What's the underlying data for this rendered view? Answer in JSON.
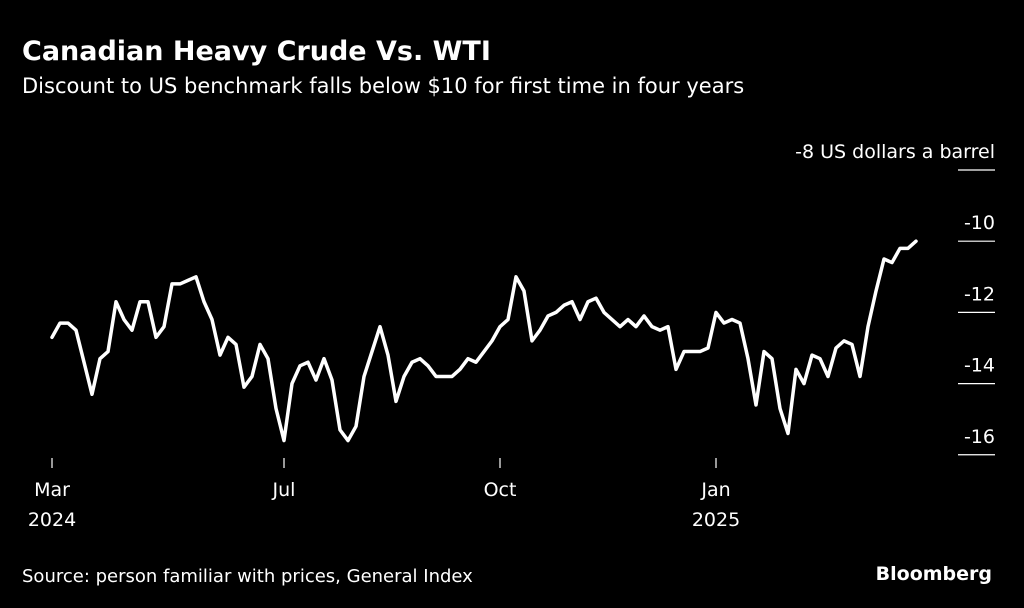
{
  "chart_data": {
    "type": "line",
    "title": "Canadian Heavy Crude Vs. WTI",
    "subtitle": "Discount to US benchmark falls below $10 for first time in four years",
    "categories": [
      "Mar 2024",
      null,
      null,
      null,
      null,
      null,
      null,
      null,
      null,
      null,
      null,
      null,
      null,
      null,
      null,
      null,
      null,
      null,
      null,
      null,
      null,
      null,
      null,
      null,
      null,
      null,
      null,
      null,
      null,
      "Jul",
      null,
      null,
      null,
      null,
      null,
      null,
      null,
      null,
      null,
      null,
      null,
      null,
      null,
      null,
      null,
      null,
      null,
      null,
      null,
      null,
      null,
      null,
      null,
      null,
      null,
      null,
      "Oct",
      null,
      null,
      null,
      null,
      null,
      null,
      null,
      null,
      null,
      null,
      null,
      null,
      null,
      null,
      null,
      null,
      null,
      null,
      null,
      null,
      null,
      null,
      null,
      null,
      null,
      null,
      "Jan 2025",
      null,
      null,
      null,
      null,
      null,
      null,
      null,
      null,
      null,
      null,
      null,
      null,
      null,
      null,
      null,
      null,
      null,
      null,
      null,
      null,
      null,
      null,
      null,
      null,
      null
    ],
    "values": [
      -12.7,
      -12.3,
      -12.3,
      -12.5,
      -13.4,
      -14.3,
      -13.3,
      -13.1,
      -11.7,
      -12.2,
      -12.5,
      -11.7,
      -11.7,
      -12.7,
      -12.4,
      -11.2,
      -11.2,
      -11.1,
      -11.0,
      -11.7,
      -12.2,
      -13.2,
      -12.7,
      -12.9,
      -14.1,
      -13.8,
      -12.9,
      -13.3,
      -14.7,
      -15.6,
      -14.0,
      -13.5,
      -13.4,
      -13.9,
      -13.3,
      -13.9,
      -15.3,
      -15.6,
      -15.2,
      -13.8,
      -13.1,
      -12.4,
      -13.2,
      -14.5,
      -13.8,
      -13.4,
      -13.3,
      -13.5,
      -13.8,
      -13.8,
      -13.8,
      -13.6,
      -13.3,
      -13.4,
      -13.1,
      -12.8,
      -12.4,
      -12.2,
      -11.0,
      -11.4,
      -12.8,
      -12.5,
      -12.1,
      -12.0,
      -11.8,
      -11.7,
      -12.2,
      -11.7,
      -11.6,
      -12.0,
      -12.2,
      -12.4,
      -12.2,
      -12.4,
      -12.1,
      -12.4,
      -12.5,
      -12.4,
      -13.6,
      -13.1,
      -13.1,
      -13.1,
      -13.0,
      -12.0,
      -12.3,
      -12.2,
      -12.3,
      -13.3,
      -14.6,
      -13.1,
      -13.3,
      -14.7,
      -15.4,
      -13.6,
      -14.0,
      -13.2,
      -13.3,
      -13.8,
      -13.0,
      -12.8,
      -12.9,
      -13.8,
      -12.4,
      -11.4,
      -10.5,
      -10.6,
      -10.2,
      -10.2,
      -10.0
    ],
    "color": "#ffffff",
    "ylim": [
      -16.7,
      -7.8
    ],
    "yticks": [
      {
        "value": -8,
        "label": "-8 US dollars a barrel"
      },
      -10,
      -12,
      -14,
      -16
    ],
    "source": "Source: person familiar with prices, General Index",
    "logo": "Bloomberg"
  }
}
